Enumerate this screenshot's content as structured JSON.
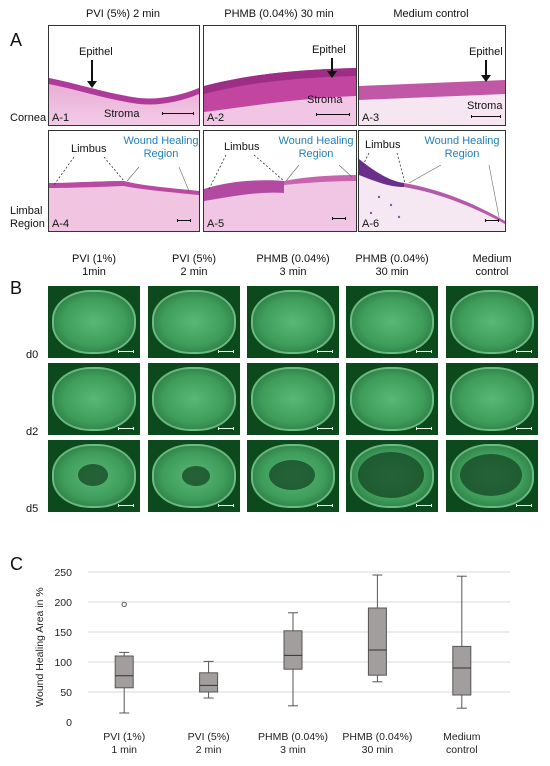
{
  "panel_a": {
    "letter": "A",
    "columns": [
      "PVI (5%) 2 min",
      "PHMB (0.04%) 30 min",
      "Medium control"
    ],
    "rows": [
      "Cornea",
      "Limbal\nRegion"
    ],
    "tiles": [
      "A-1",
      "A-2",
      "A-3",
      "A-4",
      "A-5",
      "A-6"
    ],
    "epithel": "Epithel",
    "stroma": "Stroma",
    "limbus": "Limbus",
    "wound_healing": "Wound Healing\nRegion"
  },
  "panel_b": {
    "letter": "B",
    "columns": [
      "PVI (1%)\n1min",
      "PVI (5%)\n2 min",
      "PHMB (0.04%)\n3 min",
      "PHMB (0.04%)\n30 min",
      "Medium\ncontrol"
    ],
    "rows": [
      "d0",
      "d2",
      "d5"
    ]
  },
  "panel_c": {
    "letter": "C",
    "chart_data": {
      "type": "box",
      "ylabel": "Wound Healing Area  in %",
      "ylim": [
        0,
        250
      ],
      "yticks": [
        0,
        50,
        100,
        150,
        200,
        250
      ],
      "grid": "horizontal",
      "categories": [
        "PVI (1%)\n1 min",
        "PVI (5%)\n2 min",
        "PHMB (0.04%)\n3 min",
        "PHMB (0.04%)\n30 min",
        "Medium\ncontrol"
      ],
      "boxes": [
        {
          "min": 15,
          "q1": 57,
          "median": 77,
          "q3": 110,
          "max": 116,
          "outliers": [
            196
          ]
        },
        {
          "min": 40,
          "q1": 50,
          "median": 61,
          "q3": 82,
          "max": 101,
          "outliers": []
        },
        {
          "min": 27,
          "q1": 88,
          "median": 111,
          "q3": 152,
          "max": 182,
          "outliers": []
        },
        {
          "min": 67,
          "q1": 78,
          "median": 120,
          "q3": 190,
          "max": 245,
          "outliers": []
        },
        {
          "min": 23,
          "q1": 45,
          "median": 90,
          "q3": 126,
          "max": 243,
          "outliers": []
        }
      ],
      "box_color": "#a39e9e"
    }
  }
}
